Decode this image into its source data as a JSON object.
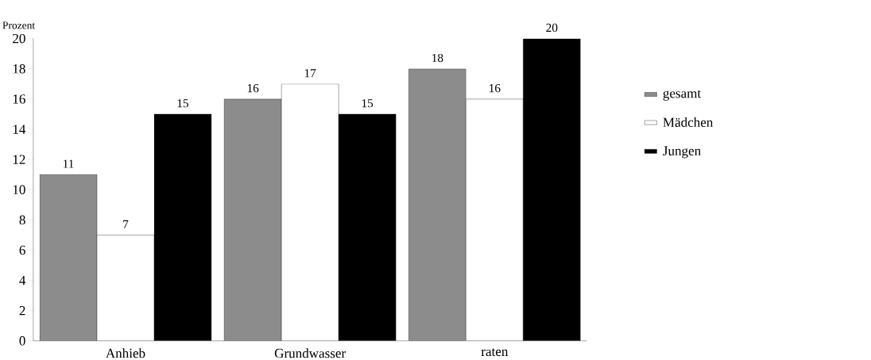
{
  "chart_data": {
    "type": "bar",
    "ylabel": "Prozent",
    "categories": [
      "Anhieb",
      "Grundwasser",
      "raten"
    ],
    "series": [
      {
        "name": "gesamt",
        "color": "#8c8c8c",
        "values": [
          11,
          16,
          18
        ]
      },
      {
        "name": "Mädchen",
        "color": "#ffffff",
        "values": [
          7,
          17,
          16
        ]
      },
      {
        "name": "Jungen",
        "color": "#000000",
        "values": [
          15,
          15,
          20
        ]
      }
    ],
    "ylim": [
      0,
      20
    ],
    "yticks": [
      0,
      2,
      4,
      6,
      8,
      10,
      12,
      14,
      16,
      18,
      20
    ],
    "data_labels": true,
    "grid": false,
    "legend": "right"
  }
}
